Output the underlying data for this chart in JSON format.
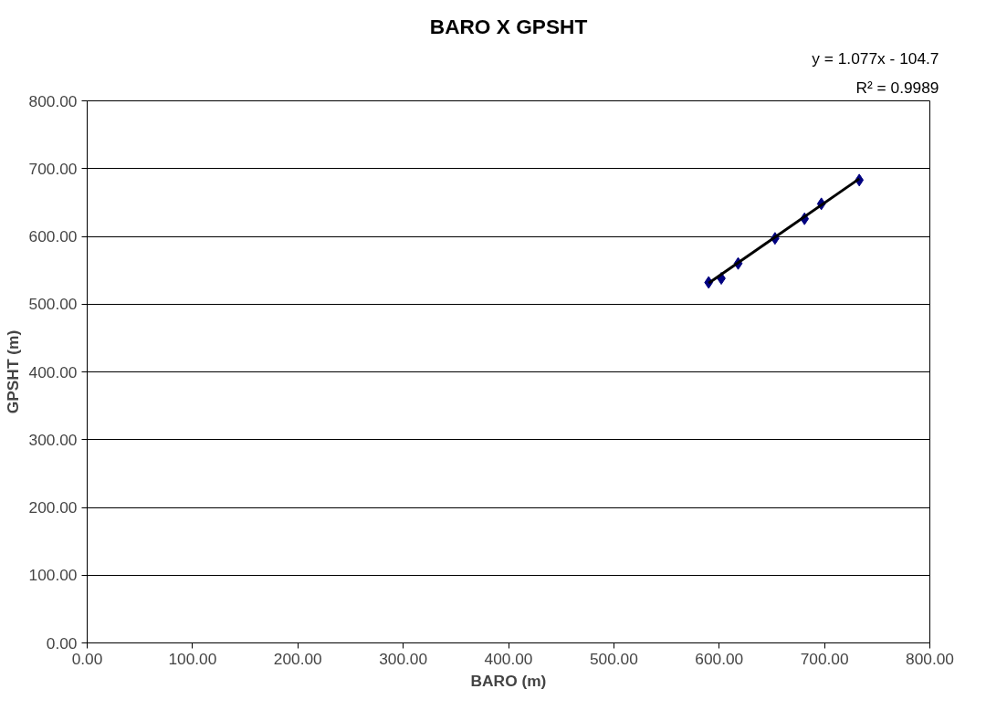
{
  "chart_data": {
    "type": "scatter",
    "title": "BARO X GPSHT",
    "xlabel": "BARO (m)",
    "ylabel": "GPSHT (m)",
    "x": [
      590,
      602,
      618,
      653,
      681,
      697,
      733
    ],
    "series": [
      {
        "color": "#000080",
        "marker": "diamond",
        "values": [
          532,
          538,
          560,
          597,
          626,
          648,
          683
        ]
      },
      {
        "type": "line",
        "color": "#000000",
        "marker": "none",
        "x": [
          590,
          733
        ],
        "values": [
          531,
          685
        ]
      }
    ],
    "annotations": [
      "y = 1.077x - 104.7",
      "R² = 0.9989"
    ],
    "xlim": [
      0,
      800
    ],
    "ylim": [
      0,
      800
    ],
    "xticks": [
      {
        "value": 0,
        "label": "0.00"
      },
      {
        "value": 100,
        "label": "100.00"
      },
      {
        "value": 200,
        "label": "200.00"
      },
      {
        "value": 300,
        "label": "300.00"
      },
      {
        "value": 400,
        "label": "400.00"
      },
      {
        "value": 500,
        "label": "500.00"
      },
      {
        "value": 600,
        "label": "600.00"
      },
      {
        "value": 700,
        "label": "700.00"
      },
      {
        "value": 800,
        "label": "800.00"
      }
    ],
    "yticks": [
      {
        "value": 0,
        "label": "0.00"
      },
      {
        "value": 100,
        "label": "100.00"
      },
      {
        "value": 200,
        "label": "200.00"
      },
      {
        "value": 300,
        "label": "300.00"
      },
      {
        "value": 400,
        "label": "400.00"
      },
      {
        "value": 500,
        "label": "500.00"
      },
      {
        "value": 600,
        "label": "600.00"
      },
      {
        "value": 700,
        "label": "700.00"
      },
      {
        "value": 800,
        "label": "800.00"
      }
    ],
    "grid": "y"
  }
}
